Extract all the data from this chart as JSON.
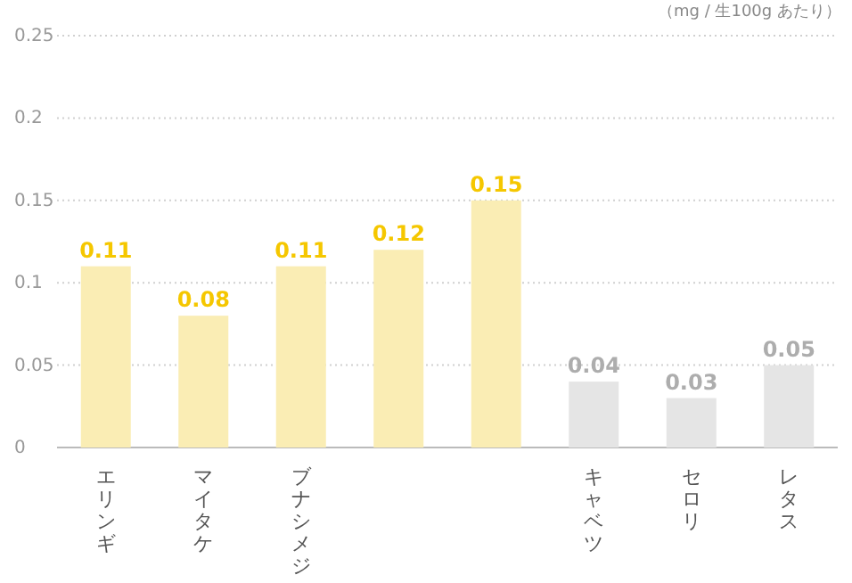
{
  "chart_data": {
    "type": "bar",
    "categories": [
      "エリンギ",
      "マイタケ",
      "ブナシメジ",
      null,
      null,
      "キャベツ",
      "セロリ",
      "レタス"
    ],
    "values": [
      0.11,
      0.08,
      0.11,
      0.12,
      0.15,
      0.04,
      0.03,
      0.05
    ],
    "colors": [
      "#faedb4",
      "#faedb4",
      "#faedb4",
      "#faedb4",
      "#faedb4",
      "#e5e5e5",
      "#e5e5e5",
      "#e5e5e5"
    ],
    "ylim": [
      0,
      0.25
    ],
    "yticks": [
      0,
      0.05,
      0.1,
      0.15,
      0.2,
      0.25
    ],
    "grid": "y",
    "data_labels": true,
    "annotations": [
      "（mg / 生100g あたり）"
    ]
  }
}
